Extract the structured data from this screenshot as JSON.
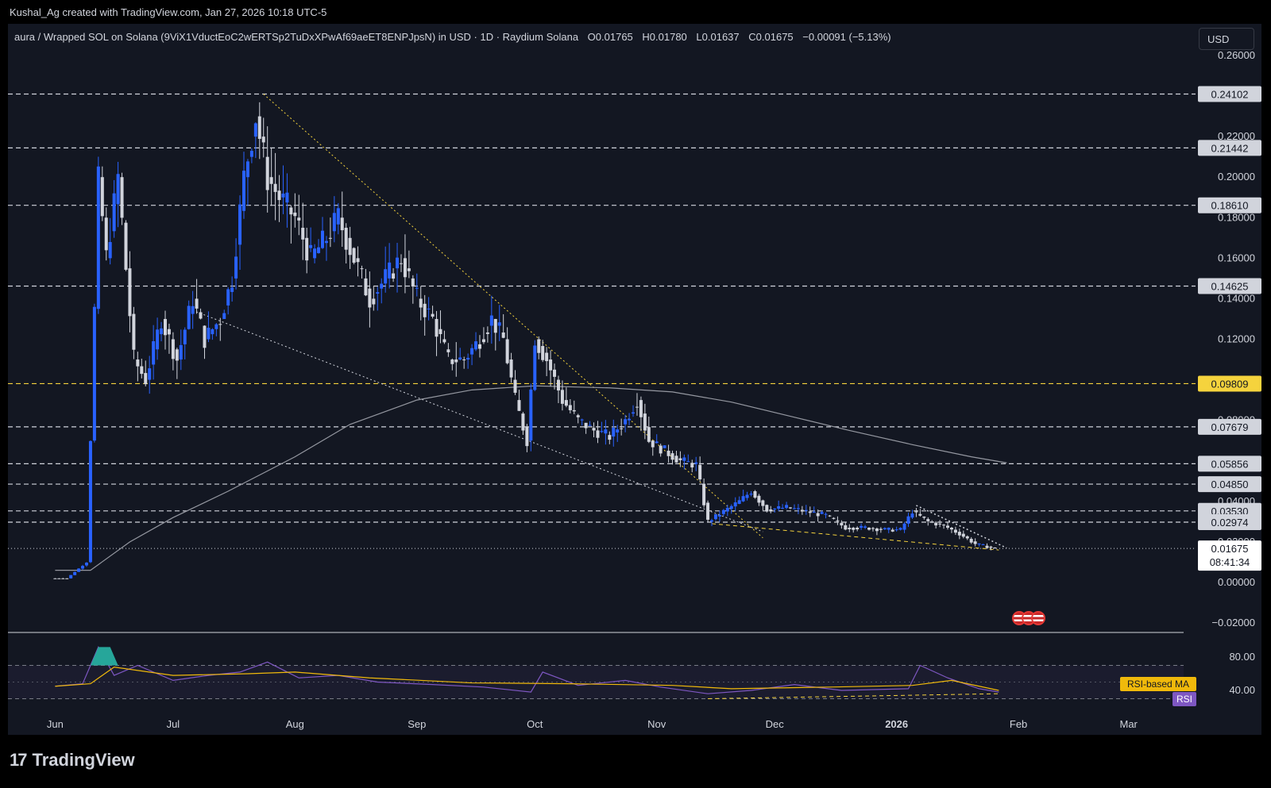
{
  "header": {
    "attribution": "Kushal_Ag created with TradingView.com, Jan 27, 2026 10:18 UTC-5"
  },
  "pricebar": {
    "symbol": "aura / Wrapped SOL on Solana (9ViX1VductEoC2wERTSp2TuDxXPwAf69aeET8ENPJpsN) in USD · 1D · Raydium Solana",
    "open": "O0.01765",
    "high": "H0.01780",
    "low": "L0.01637",
    "close": "C0.01675",
    "change": "−0.00091 (−5.13%)"
  },
  "currency_button": "USD",
  "footer": {
    "brand": "TradingView",
    "mark": "17"
  },
  "colors": {
    "background": "#131722",
    "bull": "#2962ff",
    "bear": "#d1d4dc",
    "yellow": "#f5d33d",
    "rsi_line": "#7e57c2",
    "rsi_ma": "#f0b90b",
    "ma_line": "#9598a1"
  },
  "chart_data": {
    "type": "candlestick",
    "title": "aura / Wrapped SOL on Solana",
    "interval": "1D",
    "y_axis": {
      "ticks": [
        "0.26000",
        "0.22000",
        "0.20000",
        "0.18000",
        "0.16000",
        "0.14000",
        "0.12000",
        "0.08000",
        "0.06000",
        "0.04000",
        "0.03000",
        "0.02000",
        "0.00000",
        "−0.02000"
      ],
      "range": [
        -0.02,
        0.26
      ]
    },
    "x_axis": {
      "ticks": [
        "Jun",
        "Jul",
        "Aug",
        "Sep",
        "Oct",
        "Nov",
        "Dec",
        "2026",
        "Feb",
        "Mar"
      ]
    },
    "price_levels": [
      {
        "value": 0.24102,
        "label": "0.24102",
        "style": "white-dashed"
      },
      {
        "value": 0.21442,
        "label": "0.21442",
        "style": "white-dashed"
      },
      {
        "value": 0.1861,
        "label": "0.18610",
        "style": "white-dashed"
      },
      {
        "value": 0.14625,
        "label": "0.14625",
        "style": "white-dashed"
      },
      {
        "value": 0.09809,
        "label": "0.09809",
        "style": "yellow-dashed"
      },
      {
        "value": 0.07679,
        "label": "0.07679",
        "style": "white-dashed"
      },
      {
        "value": 0.05856,
        "label": "0.05856",
        "style": "white-dashed"
      },
      {
        "value": 0.0485,
        "label": "0.04850",
        "style": "white-dashed"
      },
      {
        "value": 0.0353,
        "label": "0.03530",
        "style": "white-dashed"
      },
      {
        "value": 0.02974,
        "label": "0.02974",
        "style": "white-dashed"
      }
    ],
    "last_price": {
      "value": 0.01675,
      "label": "0.01675",
      "countdown": "08:41:34"
    },
    "price_path": [
      [
        "2025-06-01",
        0.002
      ],
      [
        "2025-06-05",
        0.002
      ],
      [
        "2025-06-10",
        0.01
      ],
      [
        "2025-06-11",
        0.07
      ],
      [
        "2025-06-13",
        0.2
      ],
      [
        "2025-06-15",
        0.16
      ],
      [
        "2025-06-18",
        0.2
      ],
      [
        "2025-06-22",
        0.11
      ],
      [
        "2025-06-25",
        0.1
      ],
      [
        "2025-06-29",
        0.13
      ],
      [
        "2025-07-03",
        0.11
      ],
      [
        "2025-07-07",
        0.14
      ],
      [
        "2025-07-10",
        0.12
      ],
      [
        "2025-07-14",
        0.13
      ],
      [
        "2025-07-17",
        0.15
      ],
      [
        "2025-07-20",
        0.2
      ],
      [
        "2025-07-23",
        0.23
      ],
      [
        "2025-07-26",
        0.2
      ],
      [
        "2025-07-29",
        0.19
      ],
      [
        "2025-08-02",
        0.18
      ],
      [
        "2025-08-06",
        0.16
      ],
      [
        "2025-08-10",
        0.17
      ],
      [
        "2025-08-13",
        0.18
      ],
      [
        "2025-08-17",
        0.16
      ],
      [
        "2025-08-21",
        0.14
      ],
      [
        "2025-08-25",
        0.15
      ],
      [
        "2025-08-29",
        0.16
      ],
      [
        "2025-09-02",
        0.14
      ],
      [
        "2025-09-06",
        0.13
      ],
      [
        "2025-09-10",
        0.11
      ],
      [
        "2025-09-14",
        0.11
      ],
      [
        "2025-09-18",
        0.12
      ],
      [
        "2025-09-21",
        0.13
      ],
      [
        "2025-09-24",
        0.12
      ],
      [
        "2025-09-27",
        0.09
      ],
      [
        "2025-09-30",
        0.07
      ],
      [
        "2025-10-02",
        0.12
      ],
      [
        "2025-10-05",
        0.11
      ],
      [
        "2025-10-09",
        0.09
      ],
      [
        "2025-10-13",
        0.08
      ],
      [
        "2025-10-17",
        0.075
      ],
      [
        "2025-10-21",
        0.072
      ],
      [
        "2025-10-25",
        0.08
      ],
      [
        "2025-10-28",
        0.09
      ],
      [
        "2025-10-31",
        0.07
      ],
      [
        "2025-11-04",
        0.065
      ],
      [
        "2025-11-08",
        0.06
      ],
      [
        "2025-11-12",
        0.058
      ],
      [
        "2025-11-15",
        0.03
      ],
      [
        "2025-11-19",
        0.035
      ],
      [
        "2025-11-23",
        0.04
      ],
      [
        "2025-11-26",
        0.045
      ],
      [
        "2025-11-30",
        0.036
      ],
      [
        "2025-12-05",
        0.037
      ],
      [
        "2025-12-10",
        0.035
      ],
      [
        "2025-12-15",
        0.033
      ],
      [
        "2025-12-20",
        0.027
      ],
      [
        "2025-12-25",
        0.027
      ],
      [
        "2025-12-30",
        0.026
      ],
      [
        "2026-01-03",
        0.026
      ],
      [
        "2026-01-06",
        0.035
      ],
      [
        "2026-01-10",
        0.03
      ],
      [
        "2026-01-14",
        0.028
      ],
      [
        "2026-01-18",
        0.024
      ],
      [
        "2026-01-22",
        0.019
      ],
      [
        "2026-01-27",
        0.01675
      ]
    ],
    "moving_average": [
      [
        "2025-06-01",
        0.006
      ],
      [
        "2025-06-10",
        0.006
      ],
      [
        "2025-06-20",
        0.02
      ],
      [
        "2025-07-01",
        0.032
      ],
      [
        "2025-07-15",
        0.045
      ],
      [
        "2025-08-01",
        0.062
      ],
      [
        "2025-08-15",
        0.078
      ],
      [
        "2025-09-01",
        0.09
      ],
      [
        "2025-09-15",
        0.095
      ],
      [
        "2025-10-01",
        0.097
      ],
      [
        "2025-10-20",
        0.096
      ],
      [
        "2025-11-05",
        0.094
      ],
      [
        "2025-11-20",
        0.089
      ],
      [
        "2025-12-05",
        0.082
      ],
      [
        "2025-12-20",
        0.075
      ],
      [
        "2026-01-05",
        0.068
      ],
      [
        "2026-01-20",
        0.062
      ],
      [
        "2026-01-29",
        0.059
      ]
    ],
    "rsi": {
      "ticks": [
        "80.00",
        "40.00"
      ],
      "labels": [
        "RSI-based MA",
        "RSI"
      ],
      "rsi_path": [
        [
          "2025-06-01",
          45
        ],
        [
          "2025-06-08",
          48
        ],
        [
          "2025-06-12",
          92
        ],
        [
          "2025-06-16",
          58
        ],
        [
          "2025-06-22",
          70
        ],
        [
          "2025-07-01",
          52
        ],
        [
          "2025-07-10",
          58
        ],
        [
          "2025-07-18",
          62
        ],
        [
          "2025-07-25",
          74
        ],
        [
          "2025-08-02",
          55
        ],
        [
          "2025-08-12",
          58
        ],
        [
          "2025-08-22",
          50
        ],
        [
          "2025-09-05",
          47
        ],
        [
          "2025-09-18",
          44
        ],
        [
          "2025-09-30",
          38
        ],
        [
          "2025-10-03",
          62
        ],
        [
          "2025-10-12",
          46
        ],
        [
          "2025-10-24",
          52
        ],
        [
          "2025-11-02",
          44
        ],
        [
          "2025-11-14",
          36
        ],
        [
          "2025-11-25",
          40
        ],
        [
          "2025-12-06",
          47
        ],
        [
          "2025-12-18",
          40
        ],
        [
          "2026-01-04",
          42
        ],
        [
          "2026-01-07",
          70
        ],
        [
          "2026-01-14",
          55
        ],
        [
          "2026-01-22",
          42
        ],
        [
          "2026-01-27",
          38
        ]
      ],
      "ma_path": [
        [
          "2025-06-01",
          45
        ],
        [
          "2025-06-10",
          48
        ],
        [
          "2025-06-16",
          68
        ],
        [
          "2025-07-01",
          58
        ],
        [
          "2025-07-20",
          60
        ],
        [
          "2025-08-01",
          62
        ],
        [
          "2025-08-20",
          55
        ],
        [
          "2025-09-15",
          49
        ],
        [
          "2025-10-10",
          48
        ],
        [
          "2025-11-05",
          46
        ],
        [
          "2025-11-20",
          42
        ],
        [
          "2025-12-15",
          44
        ],
        [
          "2026-01-05",
          46
        ],
        [
          "2026-01-15",
          52
        ],
        [
          "2026-01-27",
          40
        ]
      ]
    }
  }
}
